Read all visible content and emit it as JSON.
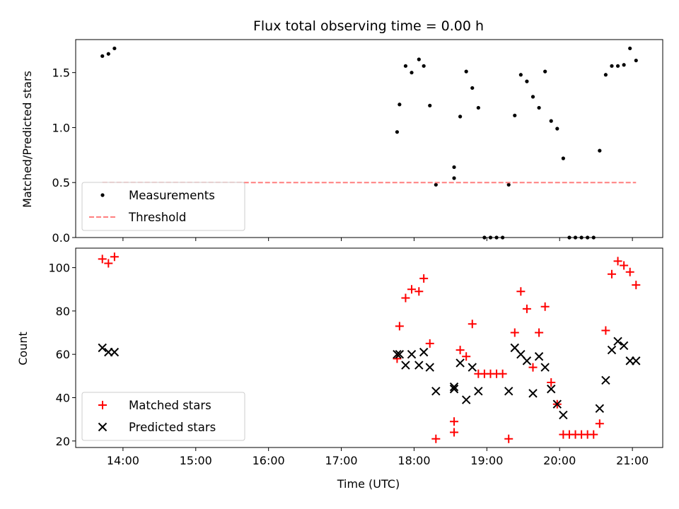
{
  "chart_data": [
    {
      "type": "scatter",
      "title": "Flux total observing time = 0.00 h",
      "xlabel": "",
      "ylabel": "Matched/Predicted stars",
      "xlim": [
        "13:21",
        "21:25"
      ],
      "ylim": [
        0,
        1.8
      ],
      "x_ticks": [
        "14:00",
        "15:00",
        "16:00",
        "17:00",
        "18:00",
        "19:00",
        "20:00",
        "21:00"
      ],
      "x_tick_labels_visible": false,
      "y_ticks": [
        0.0,
        0.5,
        1.0,
        1.5
      ],
      "y_tick_labels": [
        "0.0",
        "0.5",
        "1.0",
        "1.5"
      ],
      "grid": false,
      "legend_position": "lower-left",
      "series": [
        {
          "name": "Measurements",
          "kind": "scatter",
          "marker": "dot",
          "color": "#000000",
          "points": [
            [
              "13:43",
              1.65
            ],
            [
              "13:48",
              1.67
            ],
            [
              "13:53",
              1.72
            ],
            [
              "17:46",
              0.96
            ],
            [
              "17:48",
              1.21
            ],
            [
              "17:53",
              1.56
            ],
            [
              "17:58",
              1.5
            ],
            [
              "18:04",
              1.62
            ],
            [
              "18:08",
              1.56
            ],
            [
              "18:13",
              1.2
            ],
            [
              "18:18",
              0.48
            ],
            [
              "18:33",
              0.54
            ],
            [
              "18:33",
              0.64
            ],
            [
              "18:38",
              1.1
            ],
            [
              "18:43",
              1.51
            ],
            [
              "18:48",
              1.36
            ],
            [
              "18:53",
              1.18
            ],
            [
              "18:58",
              0.0
            ],
            [
              "19:03",
              0.0
            ],
            [
              "19:08",
              0.0
            ],
            [
              "19:13",
              0.0
            ],
            [
              "19:18",
              0.48
            ],
            [
              "19:23",
              1.11
            ],
            [
              "19:28",
              1.48
            ],
            [
              "19:33",
              1.42
            ],
            [
              "19:38",
              1.28
            ],
            [
              "19:43",
              1.18
            ],
            [
              "19:48",
              1.51
            ],
            [
              "19:53",
              1.06
            ],
            [
              "19:58",
              0.99
            ],
            [
              "20:03",
              0.72
            ],
            [
              "20:08",
              0.0
            ],
            [
              "20:13",
              0.0
            ],
            [
              "20:18",
              0.0
            ],
            [
              "20:23",
              0.0
            ],
            [
              "20:28",
              0.0
            ],
            [
              "20:33",
              0.79
            ],
            [
              "20:38",
              1.48
            ],
            [
              "20:43",
              1.56
            ],
            [
              "20:48",
              1.56
            ],
            [
              "20:53",
              1.57
            ],
            [
              "20:58",
              1.72
            ],
            [
              "21:03",
              1.61
            ]
          ]
        },
        {
          "name": "Threshold",
          "kind": "line",
          "style": "dashed",
          "color": "#ff7f7f",
          "points": [
            [
              "13:43",
              0.5
            ],
            [
              "21:03",
              0.5
            ]
          ]
        }
      ]
    },
    {
      "type": "scatter",
      "title": "",
      "xlabel": "Time (UTC)",
      "ylabel": "Count",
      "xlim": [
        "13:21",
        "21:25"
      ],
      "ylim": [
        17,
        109
      ],
      "x_ticks": [
        "14:00",
        "15:00",
        "16:00",
        "17:00",
        "18:00",
        "19:00",
        "20:00",
        "21:00"
      ],
      "x_tick_labels": [
        "14:00",
        "15:00",
        "16:00",
        "17:00",
        "18:00",
        "19:00",
        "20:00",
        "21:00"
      ],
      "y_ticks": [
        20,
        40,
        60,
        80,
        100
      ],
      "y_tick_labels": [
        "20",
        "40",
        "60",
        "80",
        "100"
      ],
      "grid": false,
      "legend_position": "lower-left",
      "series": [
        {
          "name": "Matched stars",
          "kind": "scatter",
          "marker": "plus",
          "color": "#ff0000",
          "points": [
            [
              "13:43",
              104
            ],
            [
              "13:48",
              102
            ],
            [
              "13:53",
              105
            ],
            [
              "17:46",
              58
            ],
            [
              "17:48",
              73
            ],
            [
              "17:53",
              86
            ],
            [
              "17:58",
              90
            ],
            [
              "18:04",
              89
            ],
            [
              "18:08",
              95
            ],
            [
              "18:13",
              65
            ],
            [
              "18:18",
              21
            ],
            [
              "18:33",
              24
            ],
            [
              "18:33",
              29
            ],
            [
              "18:38",
              62
            ],
            [
              "18:43",
              59
            ],
            [
              "18:48",
              74
            ],
            [
              "18:53",
              51
            ],
            [
              "18:58",
              51
            ],
            [
              "19:03",
              51
            ],
            [
              "19:08",
              51
            ],
            [
              "19:13",
              51
            ],
            [
              "19:18",
              21
            ],
            [
              "19:23",
              70
            ],
            [
              "19:28",
              89
            ],
            [
              "19:33",
              81
            ],
            [
              "19:38",
              54
            ],
            [
              "19:43",
              70
            ],
            [
              "19:48",
              82
            ],
            [
              "19:53",
              47
            ],
            [
              "19:58",
              37
            ],
            [
              "20:03",
              23
            ],
            [
              "20:08",
              23
            ],
            [
              "20:13",
              23
            ],
            [
              "20:18",
              23
            ],
            [
              "20:23",
              23
            ],
            [
              "20:28",
              23
            ],
            [
              "20:33",
              28
            ],
            [
              "20:38",
              71
            ],
            [
              "20:43",
              97
            ],
            [
              "20:48",
              103
            ],
            [
              "20:53",
              101
            ],
            [
              "20:58",
              98
            ],
            [
              "21:03",
              92
            ]
          ]
        },
        {
          "name": "Predicted stars",
          "kind": "scatter",
          "marker": "x",
          "color": "#000000",
          "points": [
            [
              "13:43",
              63
            ],
            [
              "13:48",
              61
            ],
            [
              "13:53",
              61
            ],
            [
              "17:46",
              60
            ],
            [
              "17:48",
              60
            ],
            [
              "17:53",
              55
            ],
            [
              "17:58",
              60
            ],
            [
              "18:04",
              55
            ],
            [
              "18:08",
              61
            ],
            [
              "18:13",
              54
            ],
            [
              "18:18",
              43
            ],
            [
              "18:33",
              44
            ],
            [
              "18:33",
              45
            ],
            [
              "18:38",
              56
            ],
            [
              "18:43",
              39
            ],
            [
              "18:48",
              54
            ],
            [
              "18:53",
              43
            ],
            [
              "19:18",
              43
            ],
            [
              "19:23",
              63
            ],
            [
              "19:28",
              60
            ],
            [
              "19:33",
              57
            ],
            [
              "19:38",
              42
            ],
            [
              "19:43",
              59
            ],
            [
              "19:48",
              54
            ],
            [
              "19:53",
              44
            ],
            [
              "19:58",
              37
            ],
            [
              "20:03",
              32
            ],
            [
              "20:33",
              35
            ],
            [
              "20:38",
              48
            ],
            [
              "20:43",
              62
            ],
            [
              "20:48",
              66
            ],
            [
              "20:53",
              64
            ],
            [
              "20:58",
              57
            ],
            [
              "21:03",
              57
            ]
          ]
        }
      ]
    }
  ]
}
